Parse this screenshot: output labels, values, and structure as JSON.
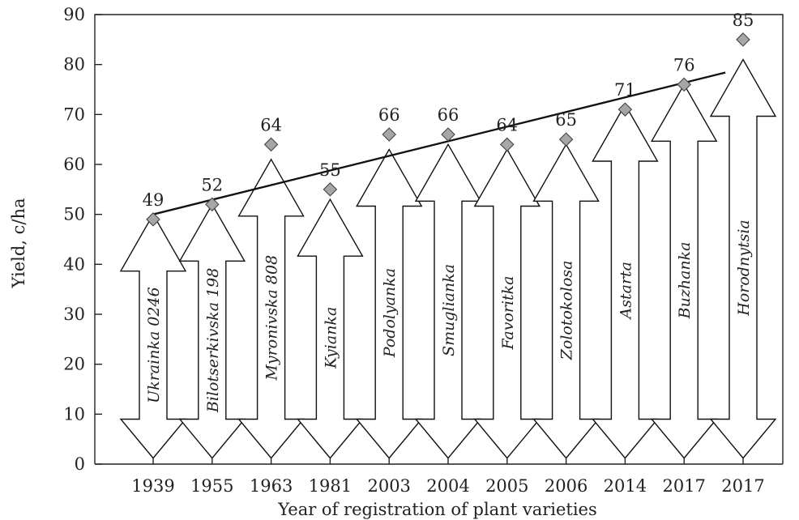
{
  "chart_data": {
    "type": "scatter",
    "title": "",
    "xlabel": "Year of registration of plant varieties",
    "ylabel": "Yield, c/ha",
    "ylim": [
      0,
      90
    ],
    "yticks": [
      0,
      10,
      20,
      30,
      40,
      50,
      60,
      70,
      80,
      90
    ],
    "grid": false,
    "legend": "none",
    "categories": [
      "1939",
      "1955",
      "1963",
      "1981",
      "2003",
      "2004",
      "2005",
      "2006",
      "2014",
      "2017",
      "2017"
    ],
    "varieties": [
      "Ukrainka 0246",
      "Bilotserkivska 198",
      "Myronivska 808",
      "Kyianka",
      "Podolyanka",
      "Smuglianka",
      "Favoritka",
      "Zolotokolosa",
      "Astarta",
      "Buzhanka",
      "Horodnytsia"
    ],
    "values": [
      49,
      52,
      64,
      55,
      66,
      66,
      64,
      65,
      71,
      76,
      85
    ],
    "value_labels": [
      "49",
      "52",
      "64",
      "55",
      "66",
      "66",
      "64",
      "65",
      "71",
      "76",
      "85"
    ],
    "arrow_tops": [
      50,
      52,
      61,
      53,
      63,
      64,
      63,
      64,
      72,
      76,
      81
    ],
    "trend": {
      "from": [
        0,
        50
      ],
      "to": [
        9.7,
        78.4
      ]
    },
    "marker_color": "#a6a6a6",
    "line_color": "#111111",
    "arrow_fill": "#ffffff",
    "arrow_stroke": "#111111"
  }
}
